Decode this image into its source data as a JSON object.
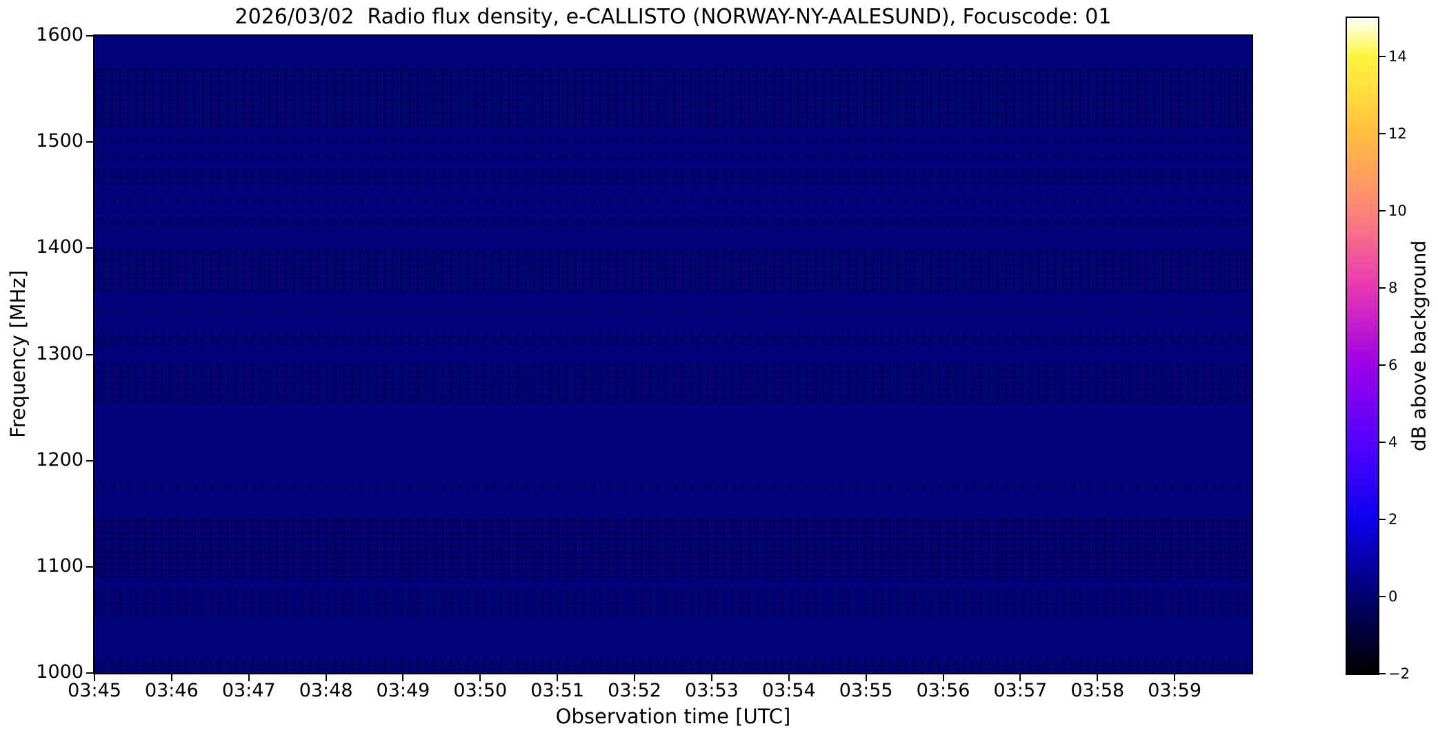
{
  "chart_data": {
    "type": "heatmap",
    "title": "2026/03/02  Radio flux density, e-CALLISTO (NORWAY-NY-AALESUND), Focuscode: 01",
    "xlabel": "Observation time [UTC]",
    "ylabel": "Frequency [MHz]",
    "x_axis_span": {
      "start": "03:45",
      "end": "04:00",
      "tick_interval_minutes": 1,
      "total_minutes": 15
    },
    "x_ticks": [
      "03:45",
      "03:46",
      "03:47",
      "03:48",
      "03:49",
      "03:50",
      "03:51",
      "03:52",
      "03:53",
      "03:54",
      "03:55",
      "03:56",
      "03:57",
      "03:58",
      "03:59"
    ],
    "ylim": [
      1000,
      1600
    ],
    "y_ticks": [
      1600,
      1500,
      1400,
      1300,
      1200,
      1100,
      1000
    ],
    "grid": false,
    "legend": "none",
    "background_color": "#03037c",
    "background_level_db": 0.5,
    "description": "Uniform quiet-sun background near 0.5 dB with faint horizontal RFI noise bands; no solar burst visible",
    "colorbar": {
      "label": "dB above background",
      "position": "right",
      "range_db": [
        -2,
        15
      ],
      "tick_values": [
        -2,
        0,
        2,
        4,
        6,
        8,
        10,
        12,
        14
      ],
      "tick_labels": [
        "−2",
        "0",
        "2",
        "4",
        "6",
        "8",
        "10",
        "12",
        "14"
      ],
      "colormap": "gnuplot2",
      "gradient_stops": [
        {
          "value": -2,
          "color": "#000000"
        },
        {
          "value": 0,
          "color": "#00006e"
        },
        {
          "value": 2,
          "color": "#0d00ef"
        },
        {
          "value": 4,
          "color": "#5303ff"
        },
        {
          "value": 6,
          "color": "#9c00e8"
        },
        {
          "value": 8,
          "color": "#e836b2"
        },
        {
          "value": 10,
          "color": "#ff8578"
        },
        {
          "value": 12,
          "color": "#ffbe3d"
        },
        {
          "value": 14,
          "color": "#fdf53d"
        },
        {
          "value": 15,
          "color": "#ffffff"
        }
      ]
    },
    "noise_bands": [
      {
        "f_high_mhz": 1570,
        "f_low_mhz": 1514,
        "intensity": 0.5
      },
      {
        "f_high_mhz": 1507,
        "f_low_mhz": 1498,
        "intensity": 0.3
      },
      {
        "f_high_mhz": 1490,
        "f_low_mhz": 1482,
        "intensity": 0.3
      },
      {
        "f_high_mhz": 1475,
        "f_low_mhz": 1459,
        "intensity": 0.4
      },
      {
        "f_high_mhz": 1449,
        "f_low_mhz": 1442,
        "intensity": 0.25
      },
      {
        "f_high_mhz": 1429,
        "f_low_mhz": 1420,
        "intensity": 0.35
      },
      {
        "f_high_mhz": 1399,
        "f_low_mhz": 1358,
        "intensity": 0.5
      },
      {
        "f_high_mhz": 1343,
        "f_low_mhz": 1339,
        "intensity": 0.25
      },
      {
        "f_high_mhz": 1321,
        "f_low_mhz": 1308,
        "intensity": 0.4
      },
      {
        "f_high_mhz": 1292,
        "f_low_mhz": 1253,
        "intensity": 0.45
      },
      {
        "f_high_mhz": 1180,
        "f_low_mhz": 1171,
        "intensity": 0.25
      },
      {
        "f_high_mhz": 1147,
        "f_low_mhz": 1089,
        "intensity": 0.55
      },
      {
        "f_high_mhz": 1078,
        "f_low_mhz": 1052,
        "intensity": 0.4
      },
      {
        "f_high_mhz": 1014,
        "f_low_mhz": 1001,
        "intensity": 0.45
      }
    ]
  }
}
